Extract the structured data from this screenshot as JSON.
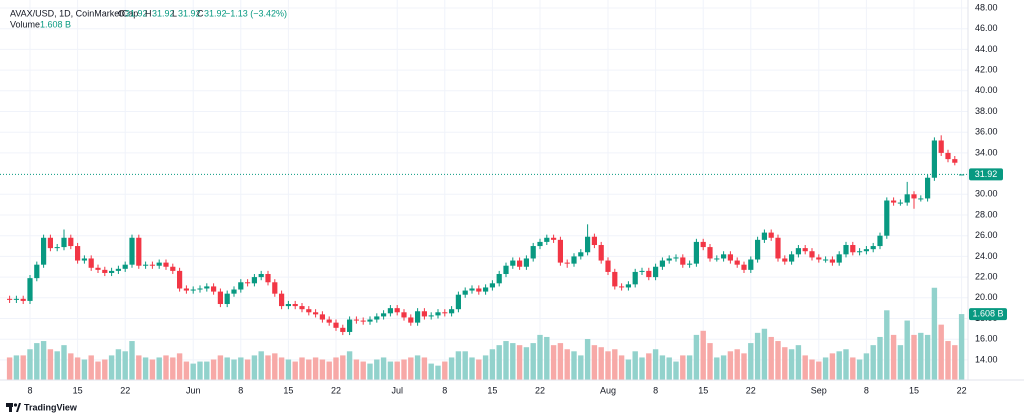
{
  "chart_data": {
    "type": "candlestick",
    "title": "AVAX/USD, 1D, CoinMarketCap",
    "ohlc_letters": [
      "O",
      "H",
      "L",
      "C"
    ],
    "change": "−1.13 (−3.42%)",
    "volume_title": "Volume",
    "last_volume_label": "1.608 B",
    "branding": "TradingView",
    "up_color": "#089981",
    "down_color": "#f23645",
    "volume_up_color": "#92d2cc",
    "volume_down_color": "#f7a9a7",
    "grid": true,
    "x": [
      "05-05",
      "05-06",
      "05-07",
      "05-08",
      "05-09",
      "05-10",
      "05-11",
      "05-12",
      "05-13",
      "05-14",
      "05-15",
      "05-16",
      "05-17",
      "05-18",
      "05-19",
      "05-20",
      "05-21",
      "05-22",
      "05-23",
      "05-24",
      "05-25",
      "05-26",
      "05-27",
      "05-28",
      "05-29",
      "05-30",
      "05-31",
      "06-01",
      "06-02",
      "06-03",
      "06-04",
      "06-05",
      "06-06",
      "06-07",
      "06-08",
      "06-09",
      "06-10",
      "06-11",
      "06-12",
      "06-13",
      "06-14",
      "06-15",
      "06-16",
      "06-17",
      "06-18",
      "06-19",
      "06-20",
      "06-21",
      "06-22",
      "06-23",
      "06-24",
      "06-25",
      "06-26",
      "06-27",
      "06-28",
      "06-29",
      "06-30",
      "07-01",
      "07-02",
      "07-03",
      "07-04",
      "07-05",
      "07-06",
      "07-07",
      "07-08",
      "07-09",
      "07-10",
      "07-11",
      "07-12",
      "07-13",
      "07-14",
      "07-15",
      "07-16",
      "07-17",
      "07-18",
      "07-19",
      "07-20",
      "07-21",
      "07-22",
      "07-23",
      "07-24",
      "07-25",
      "07-26",
      "07-27",
      "07-28",
      "07-29",
      "07-30",
      "07-31",
      "08-01",
      "08-02",
      "08-03",
      "08-04",
      "08-05",
      "08-06",
      "08-07",
      "08-08",
      "08-09",
      "08-10",
      "08-11",
      "08-12",
      "08-13",
      "08-14",
      "08-15",
      "08-16",
      "08-17",
      "08-18",
      "08-19",
      "08-20",
      "08-21",
      "08-22",
      "08-23",
      "08-24",
      "08-25",
      "08-26",
      "08-27",
      "08-28",
      "08-29",
      "08-30",
      "08-31",
      "09-01",
      "09-02",
      "09-03",
      "09-04",
      "09-05",
      "09-06",
      "09-07",
      "09-08",
      "09-09",
      "09-10",
      "09-11",
      "09-12",
      "09-13",
      "09-14",
      "09-15",
      "09-16",
      "09-17",
      "09-18",
      "09-19",
      "09-20",
      "09-21",
      "09-22"
    ],
    "open": [
      19.9,
      19.8,
      19.9,
      19.7,
      21.9,
      23.2,
      25.8,
      24.8,
      24.9,
      25.8,
      25.0,
      23.6,
      23.8,
      22.9,
      22.7,
      22.4,
      22.6,
      22.8,
      23.2,
      25.8,
      23.1,
      23.2,
      23.1,
      23.4,
      23.0,
      22.6,
      20.9,
      20.7,
      20.8,
      20.9,
      21.1,
      20.6,
      19.4,
      20.4,
      20.8,
      21.5,
      21.4,
      22.0,
      22.3,
      21.5,
      20.4,
      19.2,
      19.4,
      19.2,
      18.9,
      18.6,
      18.4,
      17.9,
      17.6,
      17.1,
      16.7,
      17.9,
      17.8,
      17.7,
      17.9,
      18.2,
      18.5,
      19.0,
      18.6,
      18.1,
      17.6,
      18.7,
      18.2,
      18.3,
      18.6,
      18.5,
      18.9,
      20.3,
      20.7,
      20.9,
      20.6,
      21.0,
      21.4,
      22.3,
      23.1,
      23.6,
      23.0,
      23.8,
      25.0,
      25.4,
      25.8,
      25.6,
      23.4,
      23.3,
      24.0,
      24.4,
      25.9,
      25.1,
      23.6,
      22.5,
      21.1,
      21.0,
      21.3,
      22.5,
      22.6,
      22.0,
      23.0,
      23.6,
      23.8,
      23.9,
      23.2,
      23.3,
      25.4,
      24.9,
      23.8,
      23.8,
      24.2,
      23.6,
      23.2,
      22.7,
      23.7,
      25.6,
      26.3,
      25.8,
      23.8,
      23.5,
      24.2,
      24.8,
      24.5,
      23.9,
      23.7,
      23.7,
      23.4,
      24.2,
      25.1,
      24.4,
      24.5,
      24.7,
      25.0,
      26.0,
      29.4,
      29.2,
      29.2,
      30.0,
      29.6,
      29.6,
      31.6,
      35.2,
      34.0,
      33.4,
      31.92
    ],
    "high": [
      20.2,
      20.2,
      20.2,
      22.2,
      23.5,
      26.1,
      26.1,
      25.2,
      26.6,
      26.1,
      25.3,
      24.1,
      24.1,
      23.2,
      23.0,
      22.9,
      23.1,
      23.5,
      26.1,
      26.1,
      23.5,
      23.5,
      23.7,
      23.7,
      23.3,
      22.9,
      21.2,
      21.1,
      21.2,
      21.4,
      21.4,
      20.9,
      20.7,
      21.1,
      21.8,
      21.8,
      22.3,
      22.6,
      22.6,
      21.8,
      20.7,
      19.7,
      19.7,
      19.5,
      19.2,
      18.9,
      18.7,
      18.2,
      17.9,
      17.4,
      18.2,
      18.2,
      18.1,
      18.2,
      18.5,
      18.8,
      19.3,
      19.3,
      18.9,
      18.4,
      19.0,
      19.0,
      18.6,
      18.9,
      18.9,
      19.2,
      20.6,
      21.0,
      21.2,
      21.2,
      21.3,
      21.7,
      22.6,
      23.4,
      23.9,
      23.9,
      24.1,
      25.3,
      25.7,
      26.1,
      26.1,
      25.9,
      23.7,
      24.3,
      24.7,
      27.1,
      26.2,
      25.4,
      23.9,
      22.8,
      21.4,
      21.6,
      22.8,
      22.9,
      22.9,
      23.3,
      23.9,
      24.1,
      24.2,
      24.2,
      23.6,
      25.7,
      25.7,
      25.2,
      24.1,
      24.5,
      24.5,
      23.9,
      23.5,
      24.0,
      25.9,
      26.6,
      26.6,
      26.1,
      24.1,
      24.5,
      25.1,
      25.1,
      24.8,
      24.2,
      24.0,
      24.0,
      24.5,
      25.4,
      25.4,
      24.8,
      25.0,
      25.3,
      26.3,
      29.7,
      29.7,
      29.5,
      31.2,
      30.3,
      29.9,
      31.9,
      35.5,
      35.7,
      34.3,
      33.7,
      31.92
    ],
    "low": [
      19.5,
      19.5,
      19.4,
      19.4,
      21.6,
      22.9,
      24.5,
      24.5,
      24.6,
      24.7,
      23.3,
      23.3,
      22.6,
      22.4,
      22.1,
      22.1,
      22.3,
      22.5,
      22.9,
      22.8,
      22.8,
      22.8,
      22.8,
      22.7,
      22.3,
      20.6,
      20.4,
      20.4,
      20.5,
      20.6,
      20.3,
      19.1,
      19.1,
      20.1,
      20.5,
      21.1,
      21.1,
      21.7,
      21.2,
      20.1,
      18.9,
      18.9,
      18.9,
      18.6,
      18.3,
      18.1,
      17.6,
      17.3,
      16.8,
      16.4,
      16.4,
      17.5,
      17.4,
      17.4,
      17.6,
      17.9,
      18.2,
      18.3,
      17.8,
      17.3,
      17.3,
      17.9,
      17.9,
      18.0,
      18.2,
      18.2,
      18.6,
      20.0,
      20.4,
      20.3,
      20.3,
      20.7,
      21.1,
      22.0,
      22.8,
      22.7,
      22.7,
      23.5,
      24.7,
      25.1,
      25.3,
      23.1,
      22.9,
      23.0,
      23.7,
      24.1,
      24.8,
      23.3,
      22.2,
      20.8,
      20.7,
      20.7,
      21.0,
      22.2,
      21.7,
      21.7,
      22.7,
      23.3,
      23.5,
      22.9,
      22.9,
      23.0,
      24.6,
      23.5,
      23.5,
      23.5,
      23.3,
      22.9,
      22.4,
      22.4,
      23.4,
      25.3,
      25.5,
      23.5,
      23.2,
      23.2,
      23.9,
      24.2,
      23.6,
      23.4,
      23.4,
      23.1,
      23.1,
      23.9,
      24.1,
      24.1,
      24.2,
      24.4,
      24.7,
      25.7,
      28.9,
      28.9,
      28.9,
      28.6,
      29.3,
      29.3,
      31.3,
      33.7,
      33.1,
      32.8,
      31.92
    ],
    "close": [
      19.8,
      19.9,
      19.7,
      21.9,
      23.2,
      25.8,
      24.8,
      24.9,
      25.8,
      25.0,
      23.6,
      23.8,
      22.9,
      22.7,
      22.4,
      22.6,
      22.8,
      23.2,
      25.8,
      23.1,
      23.2,
      23.1,
      23.4,
      23.0,
      22.6,
      20.9,
      20.7,
      20.8,
      20.9,
      21.1,
      20.6,
      19.4,
      20.4,
      20.8,
      21.5,
      21.4,
      22.0,
      22.3,
      21.5,
      20.4,
      19.2,
      19.4,
      19.2,
      18.9,
      18.6,
      18.4,
      17.9,
      17.6,
      17.1,
      16.7,
      17.9,
      17.8,
      17.7,
      17.9,
      18.2,
      18.5,
      19.0,
      18.6,
      18.1,
      17.6,
      18.7,
      18.2,
      18.3,
      18.6,
      18.5,
      18.9,
      20.3,
      20.7,
      20.9,
      20.6,
      21.0,
      21.4,
      22.3,
      23.1,
      23.6,
      23.0,
      23.8,
      25.0,
      25.4,
      25.8,
      25.6,
      23.4,
      23.3,
      24.0,
      24.4,
      25.9,
      25.1,
      23.6,
      22.5,
      21.1,
      21.0,
      21.3,
      22.5,
      22.6,
      22.0,
      23.0,
      23.6,
      23.8,
      23.9,
      23.2,
      23.3,
      25.4,
      24.9,
      23.8,
      23.8,
      24.2,
      23.6,
      23.2,
      22.7,
      23.7,
      25.6,
      26.3,
      25.8,
      23.8,
      23.5,
      24.2,
      24.8,
      24.5,
      23.9,
      23.7,
      23.7,
      23.4,
      24.2,
      25.1,
      24.4,
      24.5,
      24.7,
      25.0,
      26.0,
      29.4,
      29.2,
      29.2,
      30.0,
      29.6,
      29.6,
      31.6,
      35.2,
      34.0,
      33.4,
      33.05,
      31.92
    ],
    "volume": [
      0.55,
      0.6,
      0.6,
      0.75,
      0.9,
      0.95,
      0.75,
      0.7,
      0.85,
      0.65,
      0.55,
      0.5,
      0.6,
      0.45,
      0.5,
      0.6,
      0.75,
      0.7,
      0.95,
      0.6,
      0.55,
      0.5,
      0.55,
      0.6,
      0.55,
      0.65,
      0.45,
      0.4,
      0.45,
      0.45,
      0.5,
      0.6,
      0.55,
      0.5,
      0.55,
      0.5,
      0.6,
      0.7,
      0.6,
      0.65,
      0.55,
      0.5,
      0.45,
      0.55,
      0.5,
      0.55,
      0.5,
      0.45,
      0.55,
      0.6,
      0.7,
      0.5,
      0.45,
      0.4,
      0.5,
      0.55,
      0.45,
      0.45,
      0.5,
      0.55,
      0.6,
      0.55,
      0.4,
      0.35,
      0.45,
      0.55,
      0.7,
      0.7,
      0.55,
      0.5,
      0.6,
      0.75,
      0.85,
      0.95,
      0.9,
      0.85,
      0.8,
      0.9,
      1.1,
      1.05,
      0.85,
      0.9,
      0.75,
      0.7,
      0.6,
      1.0,
      0.85,
      0.8,
      0.7,
      0.75,
      0.6,
      0.5,
      0.7,
      0.55,
      0.65,
      0.75,
      0.6,
      0.55,
      0.45,
      0.6,
      0.6,
      1.1,
      1.2,
      0.9,
      0.55,
      0.6,
      0.7,
      0.75,
      0.65,
      0.9,
      1.15,
      1.25,
      1.05,
      0.95,
      0.8,
      0.75,
      0.85,
      0.6,
      0.5,
      0.45,
      0.55,
      0.65,
      0.7,
      0.75,
      0.55,
      0.5,
      0.65,
      0.85,
      1.05,
      1.7,
      1.1,
      0.85,
      1.45,
      1.1,
      1.15,
      1.1,
      2.25,
      1.35,
      0.95,
      0.85,
      1.608
    ],
    "xticks": [
      {
        "value": "05-08",
        "label": "8"
      },
      {
        "value": "05-15",
        "label": "15"
      },
      {
        "value": "05-22",
        "label": "22"
      },
      {
        "value": "06-01",
        "label": "Jun"
      },
      {
        "value": "06-08",
        "label": "8"
      },
      {
        "value": "06-15",
        "label": "15"
      },
      {
        "value": "06-22",
        "label": "22"
      },
      {
        "value": "07-01",
        "label": "Jul"
      },
      {
        "value": "07-08",
        "label": "8"
      },
      {
        "value": "07-15",
        "label": "15"
      },
      {
        "value": "07-22",
        "label": "22"
      },
      {
        "value": "08-01",
        "label": "Aug"
      },
      {
        "value": "08-08",
        "label": "8"
      },
      {
        "value": "08-15",
        "label": "15"
      },
      {
        "value": "08-22",
        "label": "22"
      },
      {
        "value": "09-01",
        "label": "Sep"
      },
      {
        "value": "09-08",
        "label": "8"
      },
      {
        "value": "09-15",
        "label": "15"
      },
      {
        "value": "09-22",
        "label": "22"
      }
    ],
    "ylim": [
      14,
      48
    ],
    "yticks": [
      {
        "value": 14,
        "label": "14.00"
      },
      {
        "value": 16,
        "label": "16.00"
      },
      {
        "value": 18,
        "label": "18.00"
      },
      {
        "value": 20,
        "label": "20.00"
      },
      {
        "value": 22,
        "label": "22.00"
      },
      {
        "value": 24,
        "label": "24.00"
      },
      {
        "value": 26,
        "label": "26.00"
      },
      {
        "value": 28,
        "label": "28.00"
      },
      {
        "value": 30,
        "label": "30.00"
      },
      {
        "value": 34,
        "label": "34.00"
      },
      {
        "value": 36,
        "label": "36.00"
      },
      {
        "value": 38,
        "label": "38.00"
      },
      {
        "value": 40,
        "label": "40.00"
      },
      {
        "value": 42,
        "label": "42.00"
      },
      {
        "value": 44,
        "label": "44.00"
      },
      {
        "value": 46,
        "label": "46.00"
      },
      {
        "value": 48,
        "label": "48.00"
      }
    ]
  }
}
